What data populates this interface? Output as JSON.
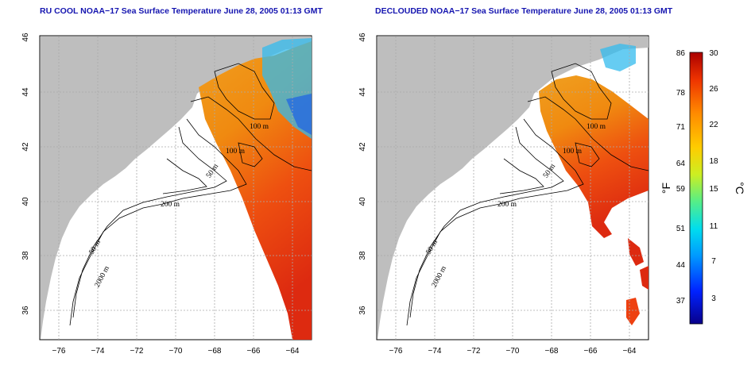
{
  "panels": [
    {
      "id": "left",
      "title": "RU COOL NOAA−17 Sea Surface Temperature June 28, 2005 01:13 GMT"
    },
    {
      "id": "right",
      "title": "DECLOUDED NOAA−17 Sea Surface Temperature June 28, 2005 01:13 GMT"
    }
  ],
  "axes": {
    "lon_ticks": [
      "−76",
      "−74",
      "−72",
      "−70",
      "−68",
      "−66",
      "−64"
    ],
    "lat_ticks": [
      "46",
      "44",
      "42",
      "40",
      "38",
      "36"
    ]
  },
  "contour_labels": [
    "100 m",
    "100 m",
    "50 m",
    "200 m",
    "50 m",
    "2000 m"
  ],
  "colorbar": {
    "fahrenheit_ticks": [
      "86",
      "78",
      "71",
      "64",
      "59",
      "51",
      "44",
      "37"
    ],
    "celsius_ticks": [
      "30",
      "26",
      "22",
      "18",
      "15",
      "11",
      "7",
      "3"
    ],
    "fahrenheit_unit": "°F",
    "celsius_unit": "°C",
    "colors": [
      "#08008a",
      "#0022ff",
      "#0099ff",
      "#00ddee",
      "#55ee88",
      "#ccee22",
      "#ffcc00",
      "#ff8800",
      "#ee3300",
      "#aa0000"
    ]
  },
  "colors": {
    "land": "#bebebe",
    "title": "#1515b0",
    "grid": "#aaaaaa"
  }
}
